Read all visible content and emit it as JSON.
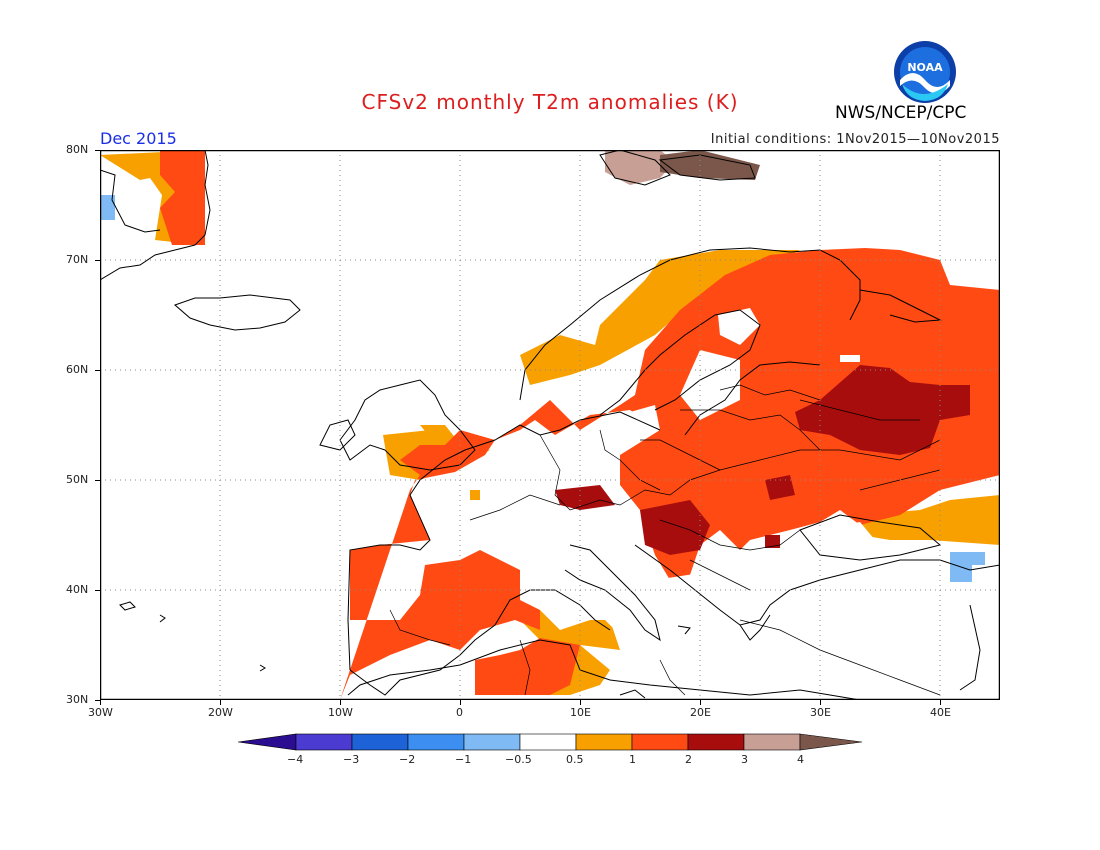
{
  "header": {
    "title": "CFSv2 monthly T2m anomalies (K)",
    "agency": "NWS/NCEP/CPC",
    "period": "Dec 2015",
    "initial_conditions": "Initial conditions: 1Nov2015—10Nov2015",
    "logo_icon": "noaa-logo-icon"
  },
  "axes": {
    "lat_labels": [
      "80N",
      "70N",
      "60N",
      "50N",
      "40N",
      "30N"
    ],
    "lon_labels": [
      "30W",
      "20W",
      "10W",
      "0",
      "10E",
      "20E",
      "30E",
      "40E"
    ]
  },
  "colorbar": {
    "labels": [
      "−4",
      "−3",
      "−2",
      "−1",
      "−0.5",
      "0.5",
      "1",
      "2",
      "3",
      "4"
    ],
    "colors": [
      "#2a0d90",
      "#4b3bd0",
      "#1e62d8",
      "#3c8ef0",
      "#7fbaf4",
      "#ffffff",
      "#f7a000",
      "#ff4a14",
      "#a80d0d",
      "#c79f95",
      "#7a574a"
    ]
  },
  "map_data": {
    "type": "gridded anomaly map",
    "region": "Europe",
    "lat_range": [
      30,
      80
    ],
    "lon_range": [
      -30,
      45
    ],
    "grid": "dotted",
    "anomaly_regions": [
      {
        "name": "iberia-north-africa",
        "category": "1-2"
      },
      {
        "name": "central-europe",
        "category": "1-2"
      },
      {
        "name": "balkans-hungary",
        "category": "2-3"
      },
      {
        "name": "western-russia",
        "category": "2-3"
      },
      {
        "name": "scandinavia",
        "category": "1-2"
      },
      {
        "name": "greenland-coast",
        "category": "1-2"
      },
      {
        "name": "svalbard",
        "category": "3-4"
      },
      {
        "name": "caucasus",
        "category": "-1--0.5"
      }
    ]
  }
}
